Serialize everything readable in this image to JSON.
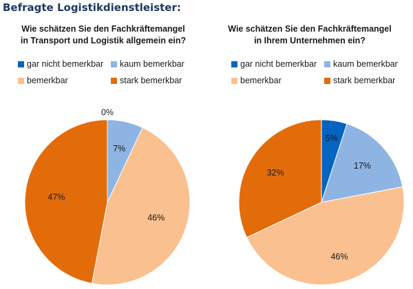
{
  "heading": "Befragte Logistikdienstleister:",
  "legend_labels": [
    "gar nicht bemerkbar",
    "kaum bemerkbar",
    "bemerkbar",
    "stark bemerkbar"
  ],
  "colors": [
    "#0563c1",
    "#8eb4e3",
    "#fac090",
    "#e36c0a"
  ],
  "chart_data": [
    {
      "type": "pie",
      "title": "Wie schätzen Sie den Fachkräftemangel\nin Transport und Logistik allgemein ein?",
      "categories": [
        "gar nicht bemerkbar",
        "kaum bemerkbar",
        "bemerkbar",
        "stark bemerkbar"
      ],
      "values": [
        0,
        7,
        46,
        47
      ],
      "labels": [
        "0%",
        "7%",
        "46%",
        "47%"
      ],
      "legend": "top"
    },
    {
      "type": "pie",
      "title": "Wie schätzen Sie den Fachkräftemangel\nin Ihrem Unternehmen ein?",
      "categories": [
        "gar nicht bemerkbar",
        "kaum bemerkbar",
        "bemerkbar",
        "stark bemerkbar"
      ],
      "values": [
        5,
        17,
        46,
        32
      ],
      "labels": [
        "5%",
        "17%",
        "46%",
        "32%"
      ],
      "legend": "top"
    }
  ]
}
